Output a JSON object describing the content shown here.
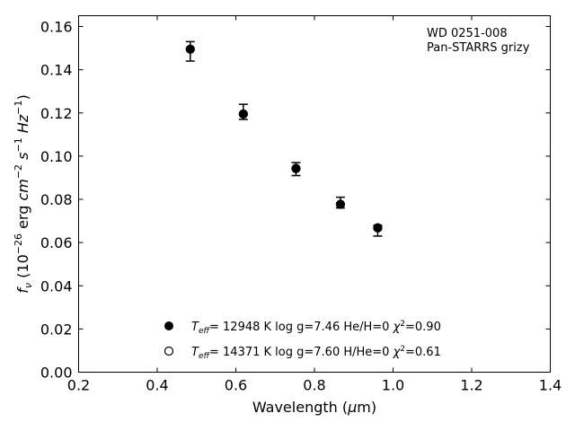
{
  "chart_data": {
    "type": "scatter",
    "annotation": [
      "WD 0251-008",
      "Pan-STARRS grizy"
    ],
    "xlabel": "Wavelength (μm)",
    "ylabel": "f_ν (10^-26 erg cm^-2 s^-1 Hz^-1)",
    "xlim": [
      0.2,
      1.4
    ],
    "ylim": [
      0.0,
      0.165
    ],
    "xticks": [
      "0.2",
      "0.4",
      "0.6",
      "0.8",
      "1.0",
      "1.2",
      "1.4"
    ],
    "yticks": [
      "0.00",
      "0.02",
      "0.04",
      "0.06",
      "0.08",
      "0.10",
      "0.12",
      "0.14",
      "0.16"
    ],
    "grid": false,
    "legend_position": "lower-center",
    "series": [
      {
        "name": "T_eff= 12948 K  log g=7.46  He/H=0  χ²=0.90",
        "marker": "filled-circle",
        "x": [
          0.484,
          0.619,
          0.753,
          0.866,
          0.961
        ],
        "y": [
          0.1495,
          0.1195,
          0.0943,
          0.0777,
          0.0668
        ]
      },
      {
        "name": "T_eff= 14371 K  log g=7.60  H/He=0  χ²=0.61",
        "marker": "open-circle",
        "x": [
          0.484,
          0.619,
          0.753,
          0.866,
          0.961
        ],
        "y": [
          0.1495,
          0.1195,
          0.0943,
          0.0777,
          0.0668
        ]
      }
    ],
    "observations": {
      "x": [
        0.484,
        0.619,
        0.753,
        0.866,
        0.961
      ],
      "y": [
        0.149,
        0.121,
        0.094,
        0.079,
        0.066
      ],
      "err_low": [
        0.144,
        0.117,
        0.091,
        0.076,
        0.063
      ],
      "err_high": [
        0.153,
        0.124,
        0.097,
        0.081,
        0.068
      ]
    },
    "colors": {
      "marker": "#000000",
      "axes": "#000000",
      "background": "#ffffff"
    }
  }
}
